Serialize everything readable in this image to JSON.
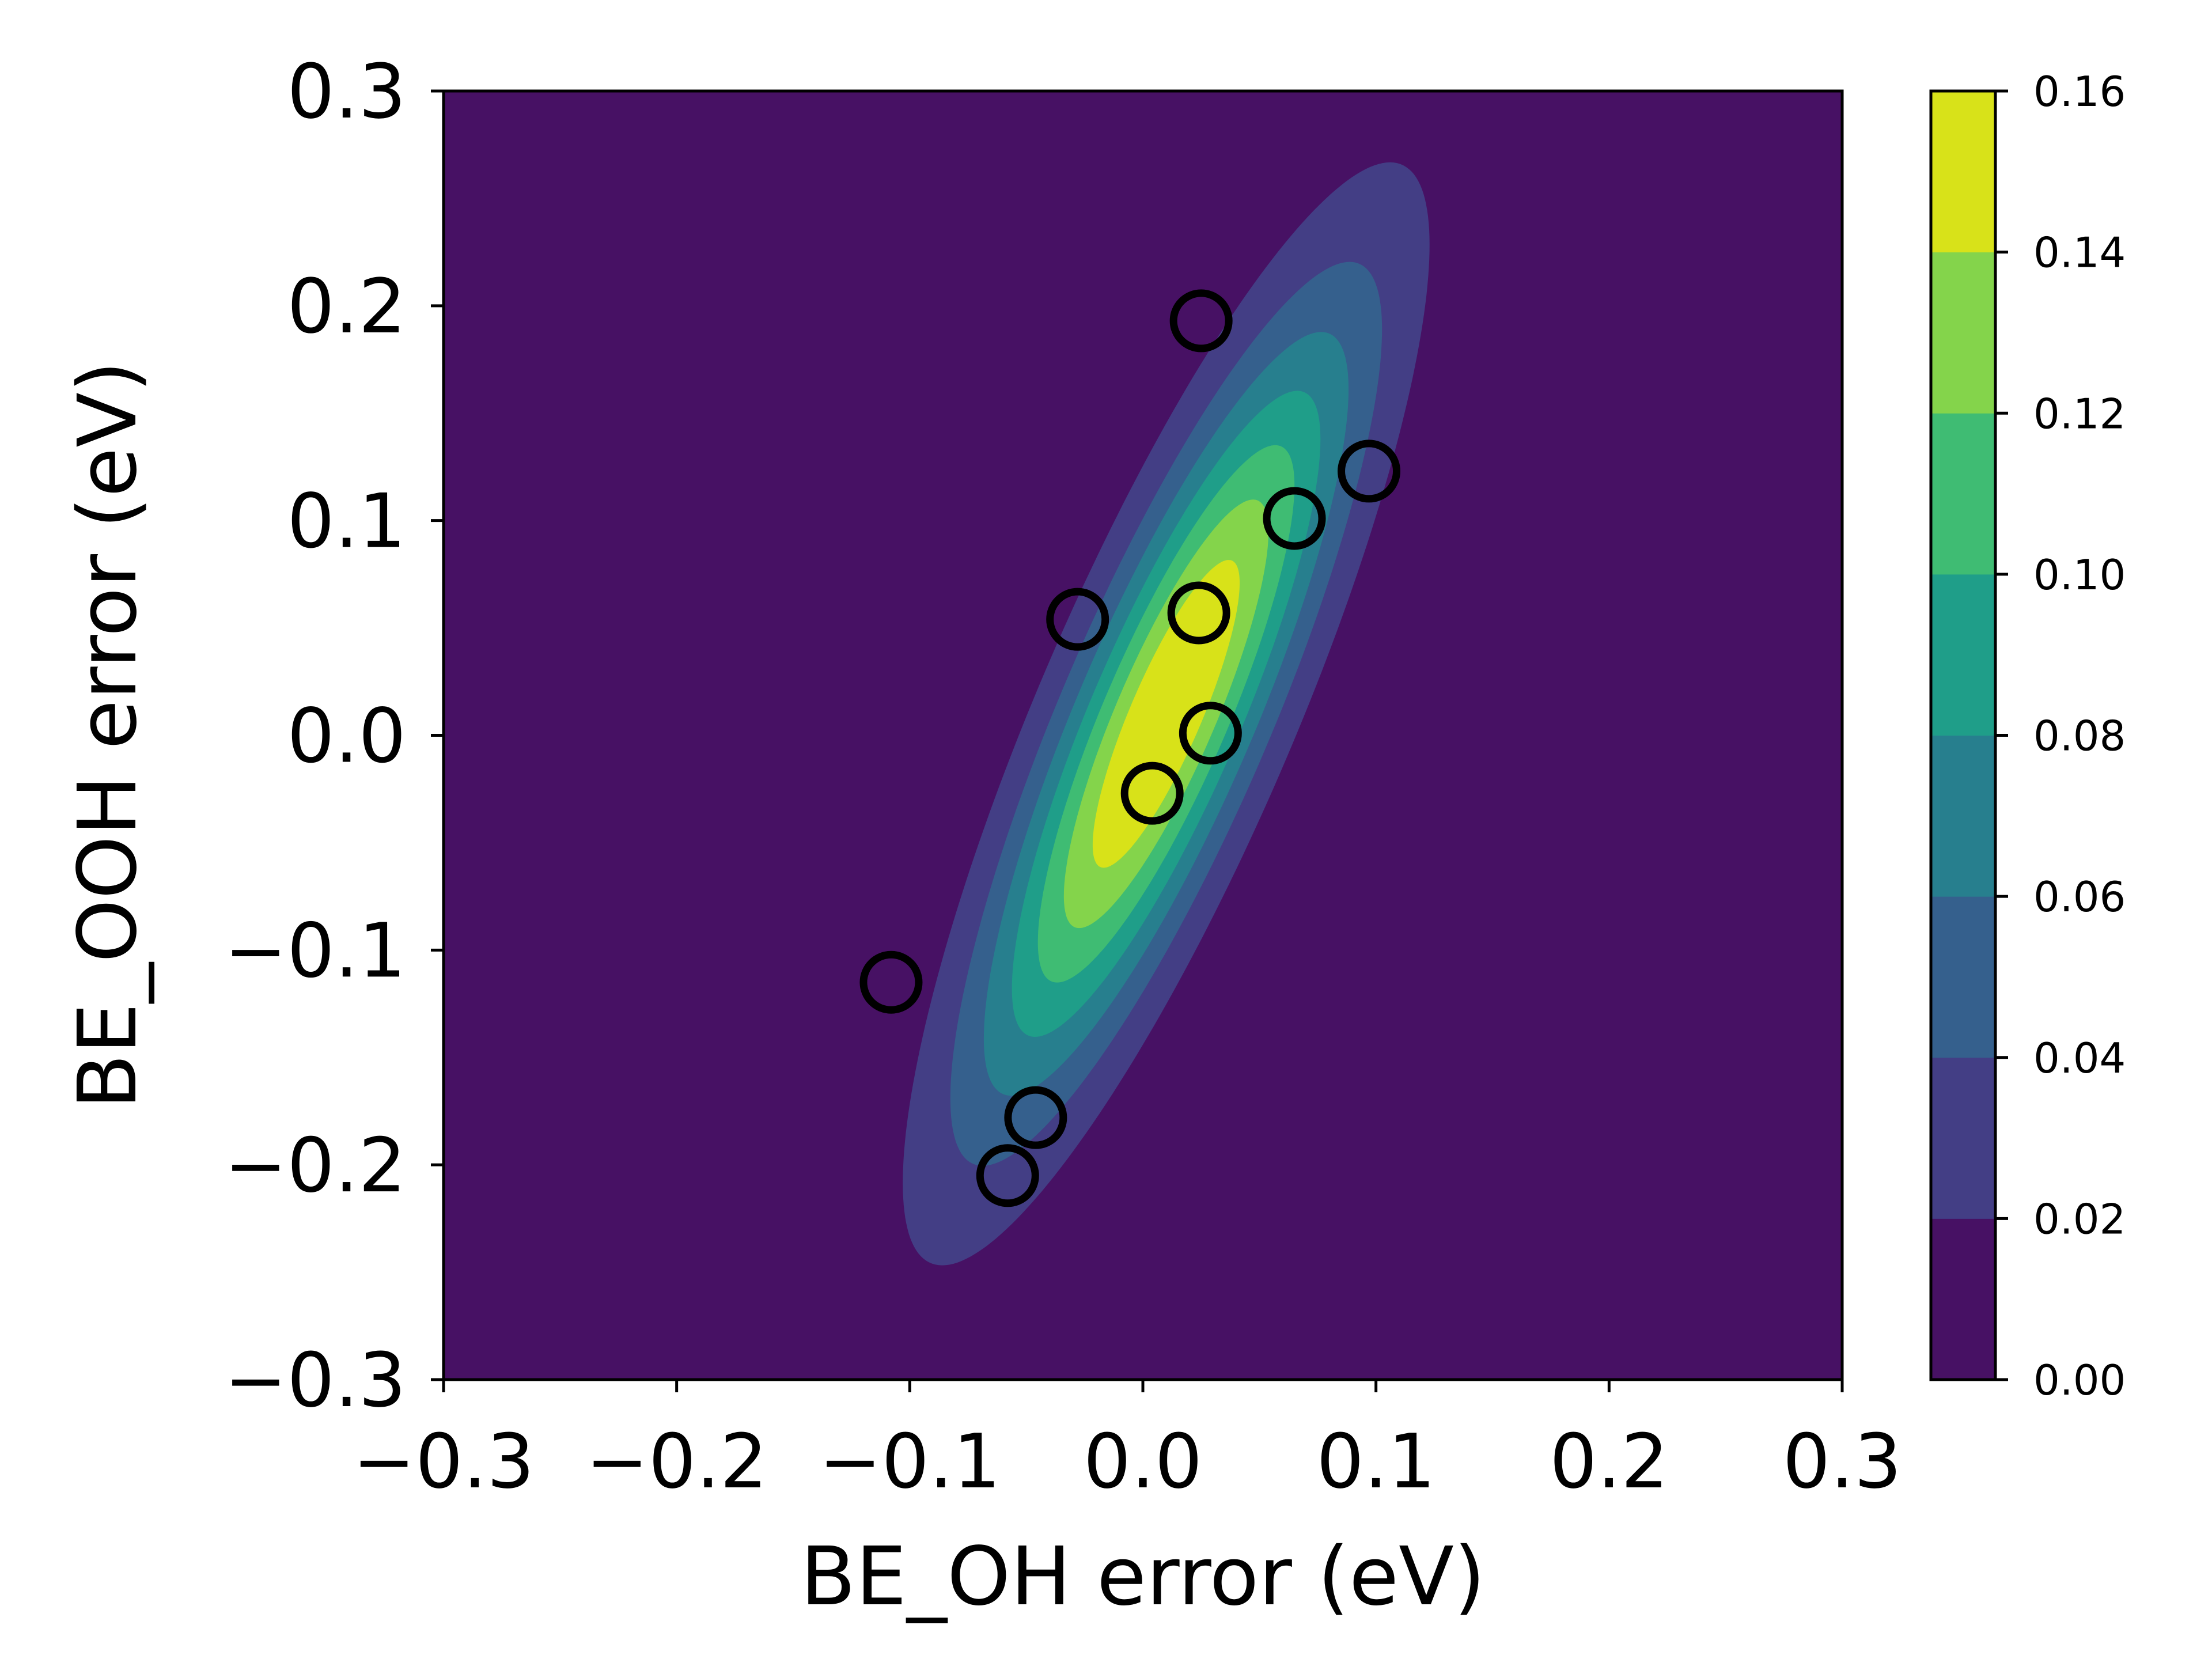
{
  "chart_data": {
    "type": "contour",
    "title": "",
    "xlabel": "BE_OH error (eV)",
    "ylabel": "BE_OOH error (eV)",
    "xlim": [
      -0.3,
      0.3
    ],
    "ylim": [
      -0.3,
      0.3
    ],
    "xticks": [
      "−0.3",
      "−0.2",
      "−0.1",
      "0.0",
      "0.1",
      "0.2",
      "0.3"
    ],
    "yticks": [
      "−0.3",
      "−0.2",
      "−0.1",
      "0.0",
      "0.1",
      "0.2",
      "0.3"
    ],
    "xtick_values": [
      -0.3,
      -0.2,
      -0.1,
      0.0,
      0.1,
      0.2,
      0.3
    ],
    "ytick_values": [
      -0.3,
      -0.2,
      -0.1,
      0.0,
      0.1,
      0.2,
      0.3
    ],
    "grid": false,
    "density": {
      "distribution": "bivariate-normal",
      "mean": [
        0.01,
        0.01
      ],
      "std": [
        0.055,
        0.125
      ],
      "correlation": 0.85,
      "peak": 0.165
    },
    "levels": [
      0.0,
      0.02,
      0.04,
      0.06,
      0.08,
      0.1,
      0.12,
      0.14,
      0.16
    ],
    "level_colors": [
      "#471164",
      "#433e85",
      "#35608d",
      "#277f8e",
      "#1f9e89",
      "#3fbc73",
      "#84d44b",
      "#d8e219"
    ],
    "points": [
      {
        "x": 0.025,
        "y": 0.193
      },
      {
        "x": 0.097,
        "y": 0.123
      },
      {
        "x": 0.065,
        "y": 0.101
      },
      {
        "x": -0.028,
        "y": 0.054
      },
      {
        "x": 0.024,
        "y": 0.057
      },
      {
        "x": 0.029,
        "y": 0.001
      },
      {
        "x": 0.004,
        "y": -0.027
      },
      {
        "x": -0.108,
        "y": -0.115
      },
      {
        "x": -0.046,
        "y": -0.178
      },
      {
        "x": -0.058,
        "y": -0.205
      }
    ],
    "marker": {
      "shape": "open-circle",
      "color": "#000000"
    },
    "colorbar": {
      "ticks": [
        "0.00",
        "0.02",
        "0.04",
        "0.06",
        "0.08",
        "0.10",
        "0.12",
        "0.14",
        "0.16"
      ],
      "tick_values": [
        0.0,
        0.02,
        0.04,
        0.06,
        0.08,
        0.1,
        0.12,
        0.14,
        0.16
      ]
    }
  }
}
